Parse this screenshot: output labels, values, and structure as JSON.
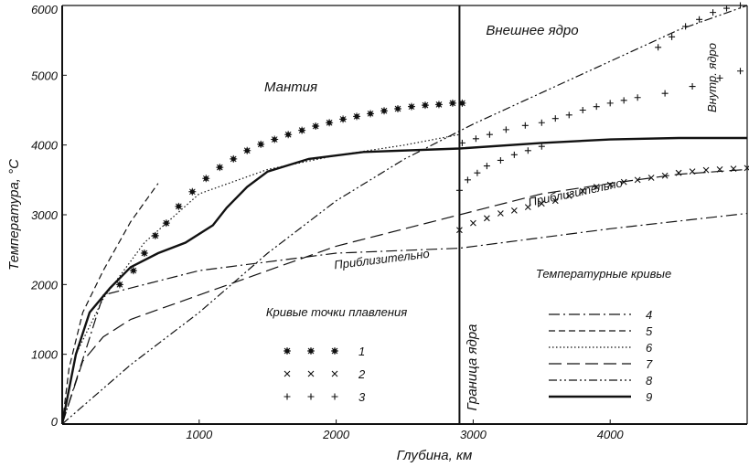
{
  "chart_data": {
    "type": "line",
    "xlabel": "Глубина, км",
    "ylabel": "Температура, °С",
    "xlim": [
      0,
      5000
    ],
    "ylim": [
      0,
      6000
    ],
    "x_ticks": [
      "1000",
      "2000",
      "3000",
      "4000"
    ],
    "y_ticks": [
      "1000",
      "2000",
      "3000",
      "4000",
      "5000",
      "6000"
    ],
    "y_zero_label": "0",
    "core_boundary_x": 2900,
    "annotations": {
      "mantle": "Мантия",
      "outer_core": "Внешнее ядро",
      "inner_core": "Внутр. ядро",
      "core_boundary": "Граница ядра",
      "approx_1": "Приблизительно",
      "approx_2": "Приблизительно"
    },
    "melting_legend_title": "Кривые точки плавления",
    "temperature_legend_title": "Температурные кривые",
    "melting_curves": [
      {
        "name": "1",
        "marker": "*",
        "symbols": "* * *",
        "points": [
          [
            420,
            2000
          ],
          [
            520,
            2200
          ],
          [
            600,
            2450
          ],
          [
            680,
            2700
          ],
          [
            760,
            2880
          ],
          [
            850,
            3120
          ],
          [
            950,
            3330
          ],
          [
            1050,
            3520
          ],
          [
            1150,
            3680
          ],
          [
            1250,
            3800
          ],
          [
            1350,
            3920
          ],
          [
            1450,
            4010
          ],
          [
            1550,
            4080
          ],
          [
            1650,
            4150
          ],
          [
            1750,
            4210
          ],
          [
            1850,
            4270
          ],
          [
            1950,
            4320
          ],
          [
            2050,
            4370
          ],
          [
            2150,
            4410
          ],
          [
            2250,
            4450
          ],
          [
            2350,
            4490
          ],
          [
            2450,
            4520
          ],
          [
            2550,
            4550
          ],
          [
            2650,
            4570
          ],
          [
            2750,
            4580
          ],
          [
            2850,
            4600
          ],
          [
            2920,
            4600
          ]
        ]
      },
      {
        "name": "2",
        "marker": "x",
        "symbols": "× × ×",
        "points": [
          [
            2900,
            2780
          ],
          [
            3000,
            2880
          ],
          [
            3100,
            2950
          ],
          [
            3200,
            3020
          ],
          [
            3300,
            3060
          ],
          [
            3400,
            3110
          ],
          [
            3500,
            3160
          ],
          [
            3600,
            3200
          ],
          [
            3700,
            3270
          ],
          [
            3800,
            3340
          ],
          [
            3900,
            3400
          ],
          [
            4000,
            3430
          ],
          [
            4100,
            3470
          ],
          [
            4200,
            3500
          ],
          [
            4300,
            3530
          ],
          [
            4400,
            3560
          ],
          [
            4500,
            3600
          ],
          [
            4600,
            3620
          ],
          [
            4700,
            3640
          ],
          [
            4800,
            3650
          ],
          [
            4900,
            3660
          ],
          [
            5000,
            3670
          ]
        ]
      },
      {
        "name": "3",
        "marker": "+",
        "symbols": "+ + +",
        "points": [
          [
            2900,
            3350
          ],
          [
            2960,
            3500
          ],
          [
            3030,
            3600
          ],
          [
            3100,
            3700
          ],
          [
            3200,
            3780
          ],
          [
            3300,
            3860
          ],
          [
            3400,
            3920
          ],
          [
            3500,
            3980
          ],
          [
            2920,
            4030
          ],
          [
            3020,
            4090
          ],
          [
            3120,
            4150
          ],
          [
            3240,
            4220
          ],
          [
            3380,
            4280
          ],
          [
            3500,
            4320
          ],
          [
            3600,
            4380
          ],
          [
            3700,
            4430
          ],
          [
            3800,
            4500
          ],
          [
            3900,
            4550
          ],
          [
            4000,
            4600
          ],
          [
            4100,
            4640
          ],
          [
            4200,
            4680
          ],
          [
            4400,
            4740
          ],
          [
            4600,
            4840
          ],
          [
            4800,
            4960
          ],
          [
            4950,
            5060
          ],
          [
            4350,
            5400
          ],
          [
            4450,
            5550
          ],
          [
            4550,
            5700
          ],
          [
            4650,
            5800
          ],
          [
            4750,
            5900
          ],
          [
            4850,
            5960
          ],
          [
            4950,
            6000
          ]
        ]
      }
    ],
    "temperature_curves": [
      {
        "name": "4",
        "style": "dashdot",
        "points": [
          [
            0,
            0
          ],
          [
            300,
            1850
          ],
          [
            1000,
            2200
          ],
          [
            2000,
            2450
          ],
          [
            2900,
            2520
          ],
          [
            4000,
            2800
          ],
          [
            5000,
            3020
          ]
        ]
      },
      {
        "name": "5",
        "style": "dashed",
        "points": [
          [
            0,
            0
          ],
          [
            50,
            800
          ],
          [
            150,
            1600
          ],
          [
            300,
            2200
          ],
          [
            500,
            2900
          ],
          [
            700,
            3450
          ]
        ]
      },
      {
        "name": "6",
        "style": "dotted",
        "points": [
          [
            0,
            0
          ],
          [
            100,
            1000
          ],
          [
            300,
            1800
          ],
          [
            600,
            2600
          ],
          [
            1000,
            3300
          ],
          [
            1500,
            3650
          ],
          [
            2000,
            3850
          ],
          [
            2500,
            4000
          ],
          [
            2900,
            4150
          ]
        ]
      },
      {
        "name": "7",
        "style": "longdash",
        "points": [
          [
            0,
            0
          ],
          [
            150,
            900
          ],
          [
            300,
            1250
          ],
          [
            500,
            1500
          ],
          [
            1000,
            1850
          ],
          [
            1500,
            2200
          ],
          [
            2000,
            2550
          ],
          [
            2500,
            2800
          ],
          [
            2900,
            3000
          ],
          [
            3500,
            3300
          ],
          [
            4000,
            3450
          ],
          [
            4500,
            3580
          ],
          [
            5000,
            3650
          ]
        ]
      },
      {
        "name": "8",
        "style": "dashdotdot",
        "points": [
          [
            0,
            0
          ],
          [
            500,
            850
          ],
          [
            1000,
            1600
          ],
          [
            1500,
            2450
          ],
          [
            2000,
            3200
          ],
          [
            2500,
            3800
          ],
          [
            3000,
            4300
          ],
          [
            3500,
            4750
          ],
          [
            4000,
            5200
          ],
          [
            4500,
            5650
          ],
          [
            5000,
            6000
          ]
        ]
      },
      {
        "name": "9",
        "style": "solid",
        "points": [
          [
            0,
            0
          ],
          [
            30,
            300
          ],
          [
            100,
            1000
          ],
          [
            200,
            1600
          ],
          [
            350,
            1950
          ],
          [
            500,
            2250
          ],
          [
            700,
            2450
          ],
          [
            900,
            2600
          ],
          [
            1100,
            2850
          ],
          [
            1200,
            3100
          ],
          [
            1350,
            3400
          ],
          [
            1500,
            3620
          ],
          [
            1800,
            3800
          ],
          [
            2200,
            3900
          ],
          [
            2900,
            3950
          ],
          [
            3500,
            4030
          ],
          [
            4000,
            4080
          ],
          [
            4500,
            4100
          ],
          [
            5000,
            4100
          ]
        ]
      }
    ]
  }
}
